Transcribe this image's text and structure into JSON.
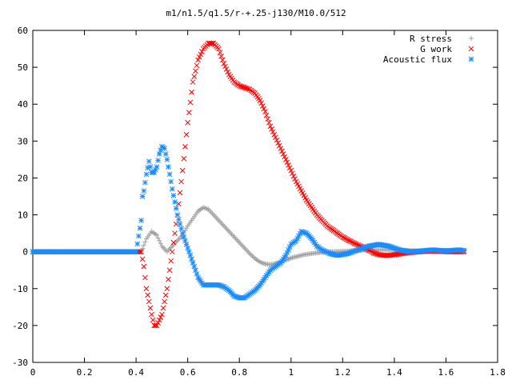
{
  "chart_data": {
    "type": "scatter",
    "title": "m1/n1.5/q1.5/r-+.25-j130/M10.0/512",
    "xlabel": "",
    "ylabel": "",
    "xlim": [
      0,
      1.8
    ],
    "ylim": [
      -30,
      60
    ],
    "xticks": [
      "0",
      "0.2",
      "0.4",
      "0.6",
      "0.8",
      "1",
      "1.2",
      "1.4",
      "1.6",
      "1.8"
    ],
    "yticks": [
      "-30",
      "-20",
      "-10",
      "0",
      "10",
      "20",
      "30",
      "40",
      "50",
      "60"
    ],
    "grid": false,
    "legend_position": "top-right",
    "series": [
      {
        "name": "R stress",
        "marker": "+",
        "color": "#a0a0a0",
        "points": [
          [
            0.0,
            0
          ],
          [
            0.1,
            0
          ],
          [
            0.2,
            0
          ],
          [
            0.3,
            0
          ],
          [
            0.42,
            0
          ],
          [
            0.44,
            3.5
          ],
          [
            0.46,
            5.5
          ],
          [
            0.48,
            4.5
          ],
          [
            0.5,
            1.5
          ],
          [
            0.52,
            0
          ],
          [
            0.54,
            1.5
          ],
          [
            0.56,
            3
          ],
          [
            0.58,
            4.5
          ],
          [
            0.6,
            7
          ],
          [
            0.62,
            9
          ],
          [
            0.64,
            11
          ],
          [
            0.66,
            12
          ],
          [
            0.68,
            11.5
          ],
          [
            0.7,
            10
          ],
          [
            0.72,
            8.5
          ],
          [
            0.74,
            7
          ],
          [
            0.76,
            5.5
          ],
          [
            0.78,
            4
          ],
          [
            0.8,
            2.5
          ],
          [
            0.82,
            1
          ],
          [
            0.84,
            -0.5
          ],
          [
            0.86,
            -1.8
          ],
          [
            0.88,
            -2.8
          ],
          [
            0.9,
            -3.3
          ],
          [
            0.92,
            -3.5
          ],
          [
            0.94,
            -3.2
          ],
          [
            0.96,
            -2.8
          ],
          [
            0.98,
            -2.3
          ],
          [
            1.0,
            -1.7
          ],
          [
            1.05,
            -0.8
          ],
          [
            1.1,
            -0.3
          ],
          [
            1.15,
            0
          ],
          [
            1.2,
            0.1
          ],
          [
            1.3,
            0.5
          ],
          [
            1.4,
            0.5
          ],
          [
            1.5,
            0.2
          ],
          [
            1.6,
            0.4
          ],
          [
            1.67,
            0.2
          ]
        ]
      },
      {
        "name": "G work",
        "marker": "x",
        "color": "#ff0000",
        "points": [
          [
            0.0,
            0
          ],
          [
            0.1,
            0
          ],
          [
            0.2,
            0
          ],
          [
            0.3,
            0
          ],
          [
            0.42,
            0
          ],
          [
            0.43,
            -4
          ],
          [
            0.44,
            -10
          ],
          [
            0.46,
            -17
          ],
          [
            0.47,
            -20
          ],
          [
            0.48,
            -20
          ],
          [
            0.5,
            -17
          ],
          [
            0.52,
            -10
          ],
          [
            0.54,
            0
          ],
          [
            0.56,
            10
          ],
          [
            0.58,
            22
          ],
          [
            0.6,
            35
          ],
          [
            0.62,
            46
          ],
          [
            0.64,
            52
          ],
          [
            0.66,
            55
          ],
          [
            0.68,
            56.5
          ],
          [
            0.7,
            56.5
          ],
          [
            0.72,
            55
          ],
          [
            0.74,
            51
          ],
          [
            0.76,
            48
          ],
          [
            0.78,
            46
          ],
          [
            0.8,
            45
          ],
          [
            0.82,
            44.5
          ],
          [
            0.84,
            44
          ],
          [
            0.86,
            43
          ],
          [
            0.88,
            41
          ],
          [
            0.9,
            38
          ],
          [
            0.92,
            34
          ],
          [
            0.94,
            31
          ],
          [
            0.96,
            28
          ],
          [
            0.98,
            25
          ],
          [
            1.0,
            22
          ],
          [
            1.02,
            19
          ],
          [
            1.04,
            16.5
          ],
          [
            1.06,
            14
          ],
          [
            1.08,
            12
          ],
          [
            1.1,
            10
          ],
          [
            1.12,
            8.5
          ],
          [
            1.14,
            7
          ],
          [
            1.16,
            6
          ],
          [
            1.18,
            5
          ],
          [
            1.2,
            4
          ],
          [
            1.22,
            3.2
          ],
          [
            1.24,
            2.5
          ],
          [
            1.26,
            1.8
          ],
          [
            1.28,
            1.2
          ],
          [
            1.3,
            0.5
          ],
          [
            1.32,
            -0.3
          ],
          [
            1.34,
            -0.8
          ],
          [
            1.36,
            -1.0
          ],
          [
            1.38,
            -1.0
          ],
          [
            1.4,
            -0.8
          ],
          [
            1.45,
            -0.3
          ],
          [
            1.5,
            0
          ],
          [
            1.55,
            0.2
          ],
          [
            1.6,
            0
          ],
          [
            1.67,
            0
          ]
        ]
      },
      {
        "name": "Acoustic flux",
        "marker": "*",
        "color": "#1a8cff",
        "points": [
          [
            0.0,
            0
          ],
          [
            0.1,
            0
          ],
          [
            0.2,
            0
          ],
          [
            0.3,
            0
          ],
          [
            0.4,
            0
          ],
          [
            0.42,
            8.5
          ],
          [
            0.425,
            15
          ],
          [
            0.43,
            16.5
          ],
          [
            0.44,
            21
          ],
          [
            0.45,
            24.5
          ],
          [
            0.46,
            21.5
          ],
          [
            0.47,
            21.5
          ],
          [
            0.48,
            23
          ],
          [
            0.49,
            26.5
          ],
          [
            0.5,
            28.5
          ],
          [
            0.51,
            28
          ],
          [
            0.52,
            25
          ],
          [
            0.54,
            17
          ],
          [
            0.56,
            10
          ],
          [
            0.58,
            5
          ],
          [
            0.6,
            1
          ],
          [
            0.62,
            -3
          ],
          [
            0.64,
            -7
          ],
          [
            0.66,
            -9
          ],
          [
            0.68,
            -9
          ],
          [
            0.7,
            -9
          ],
          [
            0.72,
            -9
          ],
          [
            0.74,
            -9.5
          ],
          [
            0.76,
            -10.5
          ],
          [
            0.78,
            -12
          ],
          [
            0.8,
            -12.5
          ],
          [
            0.82,
            -12.5
          ],
          [
            0.84,
            -11.5
          ],
          [
            0.86,
            -10.5
          ],
          [
            0.88,
            -9
          ],
          [
            0.9,
            -7
          ],
          [
            0.92,
            -5
          ],
          [
            0.94,
            -4
          ],
          [
            0.96,
            -3
          ],
          [
            0.98,
            -1
          ],
          [
            1.0,
            2
          ],
          [
            1.02,
            3
          ],
          [
            1.04,
            5.5
          ],
          [
            1.06,
            5
          ],
          [
            1.08,
            3.5
          ],
          [
            1.1,
            1.5
          ],
          [
            1.12,
            0.5
          ],
          [
            1.15,
            -0.5
          ],
          [
            1.18,
            -1.0
          ],
          [
            1.22,
            -0.5
          ],
          [
            1.26,
            0.5
          ],
          [
            1.3,
            1.5
          ],
          [
            1.34,
            2
          ],
          [
            1.38,
            1.5
          ],
          [
            1.42,
            0.5
          ],
          [
            1.46,
            0
          ],
          [
            1.5,
            0.2
          ],
          [
            1.55,
            0.5
          ],
          [
            1.6,
            0.2
          ],
          [
            1.65,
            0.5
          ],
          [
            1.67,
            0.3
          ]
        ]
      }
    ]
  }
}
